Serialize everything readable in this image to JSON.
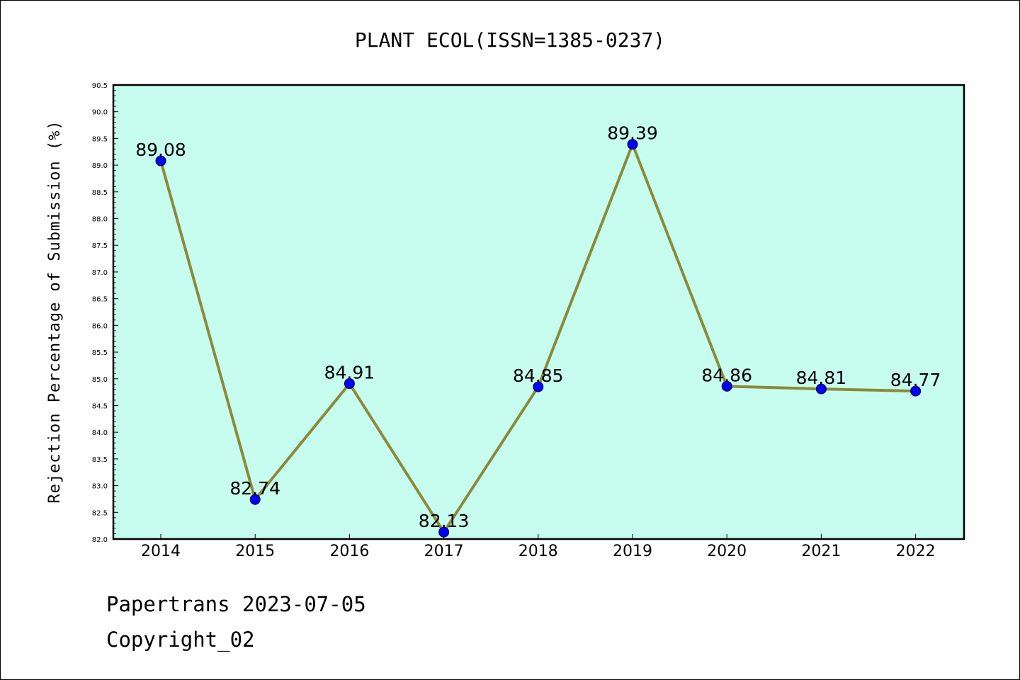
{
  "chart_data": {
    "type": "line",
    "title": "PLANT ECOL(ISSN=1385-0237)",
    "xlabel": "",
    "ylabel": "Rejection Percentage of Submission (%)",
    "categories": [
      "2014",
      "2015",
      "2016",
      "2017",
      "2018",
      "2019",
      "2020",
      "2021",
      "2022"
    ],
    "series": [
      {
        "values": [
          89.08,
          82.74,
          84.91,
          82.13,
          84.85,
          89.39,
          84.86,
          84.81,
          84.77
        ]
      }
    ],
    "data_labels": [
      "89.08",
      "82.74",
      "84.91",
      "82.13",
      "84.85",
      "89.39",
      "84.86",
      "84.81",
      "84.77"
    ],
    "ylim": [
      82.0,
      90.5
    ],
    "yticks": [
      "82.0",
      "82.5",
      "83.0",
      "83.5",
      "84.0",
      "84.5",
      "85.0",
      "85.5",
      "86.0",
      "86.5",
      "87.0",
      "87.5",
      "88.0",
      "88.5",
      "89.0",
      "89.5",
      "90.0",
      "90.5"
    ],
    "grid": false,
    "colors": {
      "plot_background": "#c7fdee",
      "line": "#8b8a3a",
      "marker": "#0000ff"
    }
  },
  "footer": {
    "source": "Papertrans 2023-07-05",
    "copyright": "Copyright_02"
  }
}
